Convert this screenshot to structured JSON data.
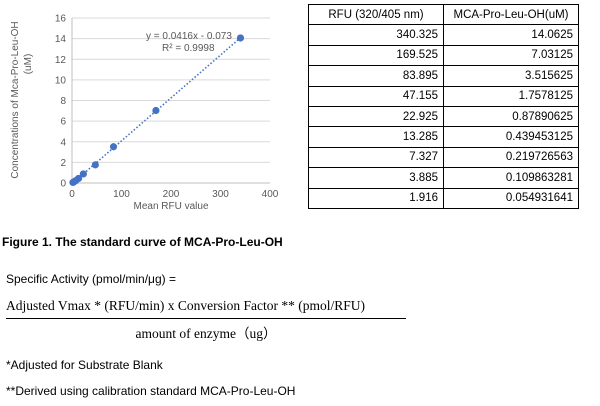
{
  "chart_data": {
    "type": "scatter",
    "xlabel": "Mean RFU value",
    "ylabel": "Concentrations of Mca-Pro-Leu-OH (uM)",
    "xlim": [
      0,
      400
    ],
    "ylim": [
      0,
      16
    ],
    "xticks": [
      0,
      100,
      200,
      300,
      400
    ],
    "yticks": [
      0,
      2,
      4,
      6,
      8,
      10,
      12,
      14,
      16
    ],
    "grid": "horizontal",
    "series": [
      {
        "x": [
          340.325,
          169.525,
          83.895,
          47.155,
          22.925,
          13.285,
          7.327,
          3.885,
          1.916
        ],
        "y": [
          14.0625,
          7.03125,
          3.515625,
          1.7578125,
          0.87890625,
          0.439453125,
          0.219726563,
          0.109863281,
          0.054931641
        ],
        "color": "#4472c4"
      }
    ],
    "trendline": {
      "slope": 0.0416,
      "intercept": -0.073,
      "style": "dotted",
      "color": "#4472c4"
    },
    "annotations": {
      "equation": "y = 0.0416x - 0.073",
      "r2": "R² = 0.9998"
    }
  },
  "table": {
    "headers": [
      "RFU (320/405 nm)",
      "MCA-Pro-Leu-OH(uM)"
    ],
    "rows": [
      [
        "340.325",
        "14.0625"
      ],
      [
        "169.525",
        "7.03125"
      ],
      [
        "83.895",
        "3.515625"
      ],
      [
        "47.155",
        "1.7578125"
      ],
      [
        "22.925",
        "0.87890625"
      ],
      [
        "13.285",
        "0.439453125"
      ],
      [
        "7.327",
        "0.219726563"
      ],
      [
        "3.885",
        "0.109863281"
      ],
      [
        "1.916",
        "0.054931641"
      ]
    ]
  },
  "caption": "Figure 1. The standard curve of MCA-Pro-Leu-OH",
  "specific_activity_label": "Specific Activity (pmol/min/μg) =",
  "formula": {
    "numerator": "Adjusted  Vmax * (RFU/min)   x Conversion  Factor ** (pmol/RFU)",
    "denominator": "amount  of enzyme（ug）"
  },
  "footnotes": [
    "*Adjusted for Substrate Blank",
    "**Derived using calibration standard MCA-Pro-Leu-OH"
  ]
}
